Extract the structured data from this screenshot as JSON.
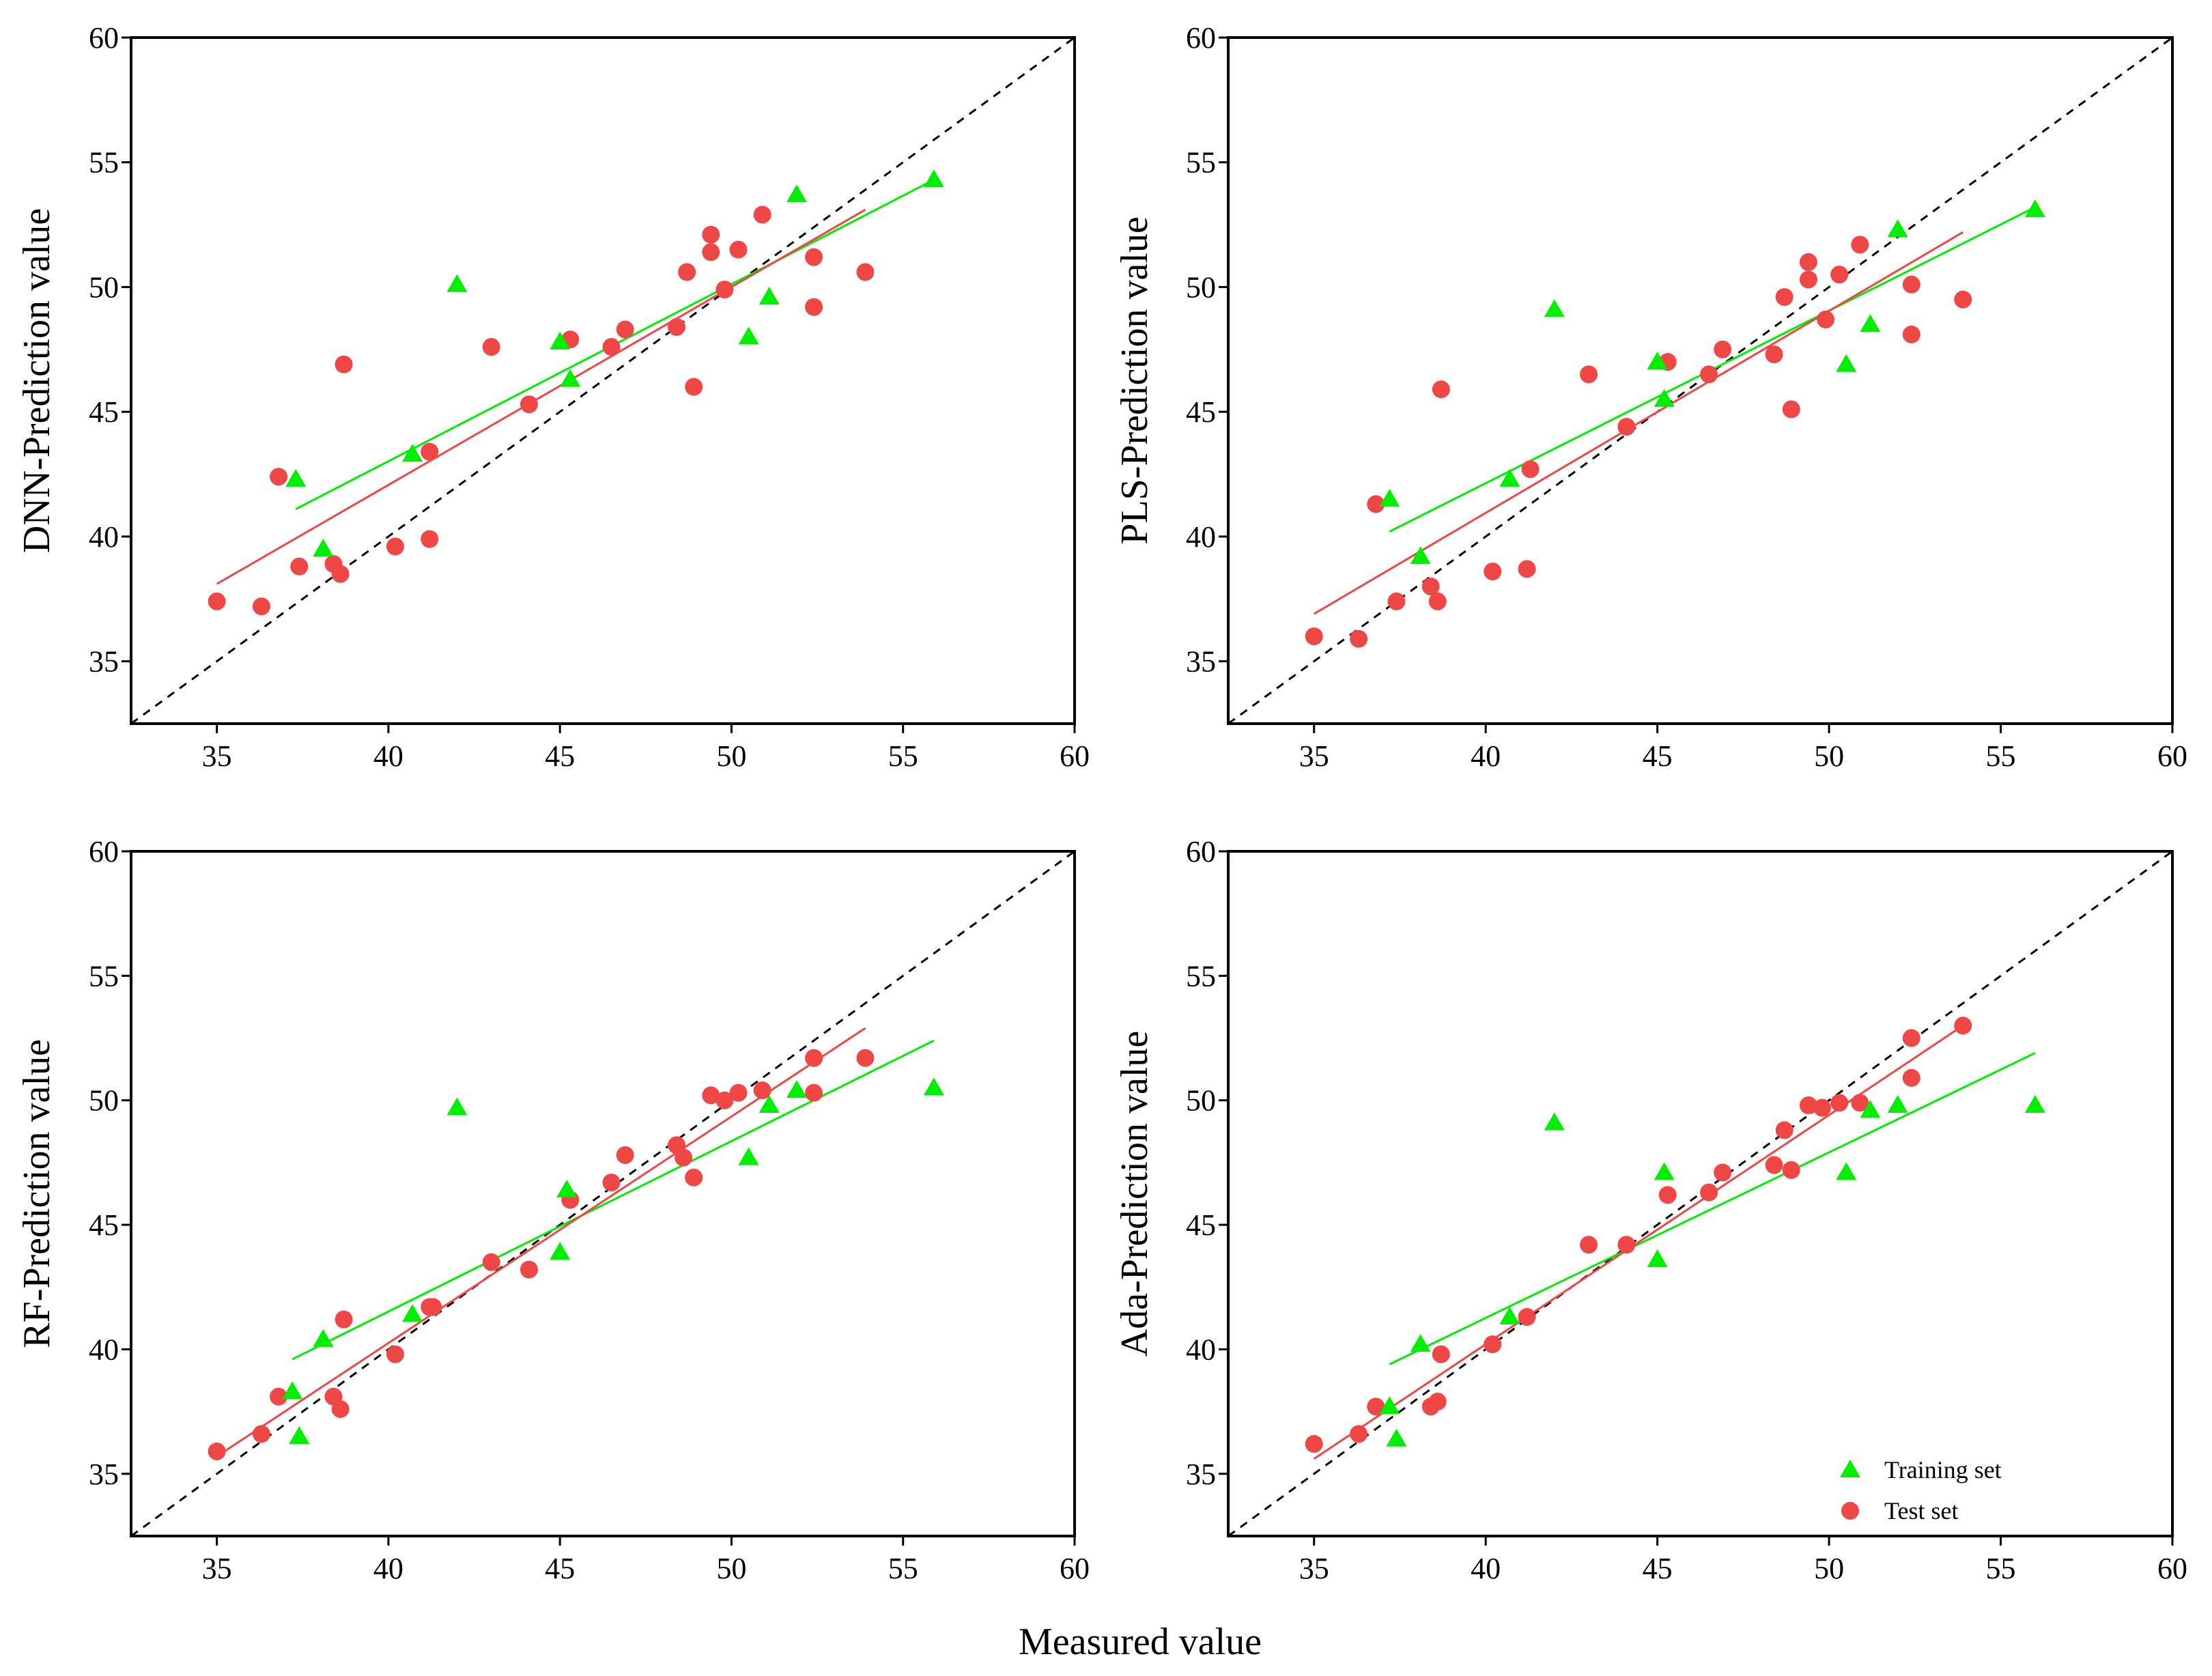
{
  "figure": {
    "xlabel": "Measured value",
    "colors": {
      "training": "#00ee00",
      "test": "#ef4646",
      "identity": "#000000"
    },
    "legend": {
      "position": "bottom-right",
      "training_label": "Training set",
      "test_label": "Test set"
    }
  },
  "chart_data": [
    {
      "type": "scatter",
      "ylabel": "DNN-Prediction value",
      "xlim": [
        32.5,
        60
      ],
      "ylim": [
        32.5,
        60
      ],
      "xticks": [
        35,
        40,
        45,
        50,
        55,
        60
      ],
      "yticks": [
        35,
        40,
        45,
        50,
        55,
        60
      ],
      "training": [
        [
          37.3,
          42.3
        ],
        [
          38.1,
          39.5
        ],
        [
          40.7,
          43.3
        ],
        [
          42.0,
          50.1
        ],
        [
          45.0,
          47.8
        ],
        [
          45.3,
          46.3
        ],
        [
          50.5,
          48.0
        ],
        [
          51.1,
          49.6
        ],
        [
          51.9,
          53.7
        ],
        [
          55.9,
          54.3
        ]
      ],
      "test": [
        [
          35.0,
          37.4
        ],
        [
          36.3,
          37.2
        ],
        [
          36.8,
          42.4
        ],
        [
          37.4,
          38.8
        ],
        [
          38.4,
          38.9
        ],
        [
          38.6,
          38.5
        ],
        [
          38.7,
          46.9
        ],
        [
          40.2,
          39.6
        ],
        [
          41.2,
          43.4
        ],
        [
          41.2,
          39.9
        ],
        [
          43.0,
          47.6
        ],
        [
          44.1,
          45.3
        ],
        [
          45.3,
          47.9
        ],
        [
          46.5,
          47.6
        ],
        [
          46.9,
          48.3
        ],
        [
          48.4,
          48.4
        ],
        [
          48.7,
          50.6
        ],
        [
          48.9,
          46.0
        ],
        [
          49.4,
          52.1
        ],
        [
          49.4,
          51.4
        ],
        [
          49.8,
          49.9
        ],
        [
          50.2,
          51.5
        ],
        [
          50.9,
          52.9
        ],
        [
          52.4,
          51.2
        ],
        [
          52.4,
          49.2
        ],
        [
          53.9,
          50.6
        ]
      ],
      "fit_training": [
        [
          37.3,
          41.1
        ],
        [
          55.9,
          54.3
        ]
      ],
      "fit_test": [
        [
          35.0,
          38.1
        ],
        [
          53.9,
          53.1
        ]
      ]
    },
    {
      "type": "scatter",
      "ylabel": "PLS-Prediction value",
      "xlim": [
        32.5,
        60
      ],
      "ylim": [
        32.5,
        60
      ],
      "xticks": [
        35,
        40,
        45,
        50,
        55,
        60
      ],
      "yticks": [
        35,
        40,
        45,
        50,
        55,
        60
      ],
      "training": [
        [
          37.2,
          41.5
        ],
        [
          38.1,
          39.2
        ],
        [
          40.7,
          42.3
        ],
        [
          42.0,
          49.1
        ],
        [
          45.0,
          47.0
        ],
        [
          45.2,
          45.5
        ],
        [
          50.5,
          46.9
        ],
        [
          51.2,
          48.5
        ],
        [
          52.0,
          52.3
        ],
        [
          56.0,
          53.1
        ]
      ],
      "test": [
        [
          35.0,
          36.0
        ],
        [
          36.3,
          35.9
        ],
        [
          36.8,
          41.3
        ],
        [
          37.4,
          37.4
        ],
        [
          38.4,
          38.0
        ],
        [
          38.6,
          37.4
        ],
        [
          38.7,
          45.9
        ],
        [
          40.2,
          38.6
        ],
        [
          41.2,
          38.7
        ],
        [
          41.3,
          42.7
        ],
        [
          43.0,
          46.5
        ],
        [
          44.1,
          44.4
        ],
        [
          45.3,
          47.0
        ],
        [
          46.5,
          46.5
        ],
        [
          46.9,
          47.5
        ],
        [
          48.4,
          47.3
        ],
        [
          48.7,
          49.6
        ],
        [
          48.9,
          45.1
        ],
        [
          49.4,
          51.0
        ],
        [
          49.4,
          50.3
        ],
        [
          49.9,
          48.7
        ],
        [
          50.3,
          50.5
        ],
        [
          50.9,
          51.7
        ],
        [
          52.4,
          50.1
        ],
        [
          52.4,
          48.1
        ],
        [
          53.9,
          49.5
        ]
      ],
      "fit_training": [
        [
          37.2,
          40.2
        ],
        [
          56.0,
          53.2
        ]
      ],
      "fit_test": [
        [
          35.0,
          36.9
        ],
        [
          53.9,
          52.2
        ]
      ]
    },
    {
      "type": "scatter",
      "ylabel": "RF-Prediction value",
      "xlim": [
        32.5,
        60
      ],
      "ylim": [
        32.5,
        60
      ],
      "xticks": [
        35,
        40,
        45,
        50,
        55,
        60
      ],
      "yticks": [
        35,
        40,
        45,
        50,
        55,
        60
      ],
      "training": [
        [
          37.2,
          38.3
        ],
        [
          37.4,
          36.5
        ],
        [
          38.1,
          40.4
        ],
        [
          40.7,
          41.4
        ],
        [
          42.0,
          49.7
        ],
        [
          45.0,
          43.9
        ],
        [
          45.2,
          46.4
        ],
        [
          50.5,
          47.7
        ],
        [
          51.1,
          49.8
        ],
        [
          51.9,
          50.4
        ],
        [
          55.9,
          50.5
        ]
      ],
      "test": [
        [
          35.0,
          35.9
        ],
        [
          36.3,
          36.6
        ],
        [
          36.8,
          38.1
        ],
        [
          38.4,
          38.1
        ],
        [
          38.6,
          37.6
        ],
        [
          38.7,
          41.2
        ],
        [
          40.2,
          39.8
        ],
        [
          41.2,
          41.7
        ],
        [
          41.3,
          41.7
        ],
        [
          43.0,
          43.5
        ],
        [
          44.1,
          43.2
        ],
        [
          45.3,
          46.0
        ],
        [
          46.5,
          46.7
        ],
        [
          46.9,
          47.8
        ],
        [
          48.4,
          48.2
        ],
        [
          48.6,
          47.7
        ],
        [
          48.9,
          46.9
        ],
        [
          49.4,
          50.2
        ],
        [
          49.8,
          50.0
        ],
        [
          50.2,
          50.3
        ],
        [
          50.9,
          50.4
        ],
        [
          52.4,
          51.7
        ],
        [
          52.4,
          50.3
        ],
        [
          53.9,
          51.7
        ]
      ],
      "fit_training": [
        [
          37.2,
          39.6
        ],
        [
          55.9,
          52.4
        ]
      ],
      "fit_test": [
        [
          35.0,
          35.7
        ],
        [
          53.9,
          52.9
        ]
      ]
    },
    {
      "type": "scatter",
      "ylabel": "Ada-Prediction value",
      "xlim": [
        32.5,
        60
      ],
      "ylim": [
        32.5,
        60
      ],
      "xticks": [
        35,
        40,
        45,
        50,
        55,
        60
      ],
      "yticks": [
        35,
        40,
        45,
        50,
        55,
        60
      ],
      "training": [
        [
          37.2,
          37.7
        ],
        [
          37.4,
          36.4
        ],
        [
          38.1,
          40.2
        ],
        [
          40.7,
          41.3
        ],
        [
          42.0,
          49.1
        ],
        [
          45.0,
          43.6
        ],
        [
          45.2,
          47.1
        ],
        [
          50.5,
          47.1
        ],
        [
          51.2,
          49.6
        ],
        [
          52.0,
          49.8
        ],
        [
          56.0,
          49.8
        ]
      ],
      "test": [
        [
          35.0,
          36.2
        ],
        [
          36.3,
          36.6
        ],
        [
          36.8,
          37.7
        ],
        [
          38.4,
          37.7
        ],
        [
          38.6,
          37.9
        ],
        [
          38.7,
          39.8
        ],
        [
          40.2,
          40.2
        ],
        [
          41.2,
          41.3
        ],
        [
          43.0,
          44.2
        ],
        [
          44.1,
          44.2
        ],
        [
          45.3,
          46.2
        ],
        [
          46.5,
          46.3
        ],
        [
          46.9,
          47.1
        ],
        [
          48.4,
          47.4
        ],
        [
          48.7,
          48.8
        ],
        [
          48.9,
          47.2
        ],
        [
          49.4,
          49.8
        ],
        [
          49.8,
          49.7
        ],
        [
          50.3,
          49.9
        ],
        [
          50.9,
          49.9
        ],
        [
          52.4,
          52.5
        ],
        [
          52.4,
          50.9
        ],
        [
          53.9,
          53.0
        ]
      ],
      "fit_training": [
        [
          37.2,
          39.4
        ],
        [
          56.0,
          51.9
        ]
      ],
      "fit_test": [
        [
          35.0,
          35.6
        ],
        [
          53.9,
          53.0
        ]
      ]
    }
  ]
}
